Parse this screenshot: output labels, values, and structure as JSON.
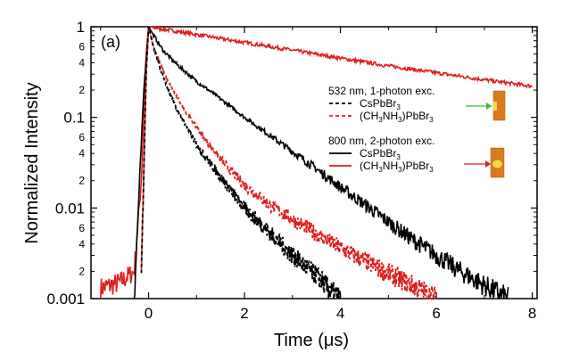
{
  "chart_data": {
    "type": "line",
    "panel_label": "(a)",
    "xlabel": "Time (μs)",
    "ylabel": "Normalized Intensity",
    "xlim": [
      -1.2,
      8.1
    ],
    "ylim": [
      0.001,
      1
    ],
    "yscale": "log",
    "grid": false,
    "x_ticks": [
      {
        "value": 0,
        "label": "0"
      },
      {
        "value": 2,
        "label": "2"
      },
      {
        "value": 4,
        "label": "4"
      },
      {
        "value": 6,
        "label": "6"
      },
      {
        "value": 8,
        "label": "8"
      }
    ],
    "y_major_ticks": [
      {
        "value": 1,
        "label": "1"
      },
      {
        "value": 0.1,
        "label": "0.1"
      },
      {
        "value": 0.01,
        "label": "0.01"
      },
      {
        "value": 0.001,
        "label": "0.001"
      }
    ],
    "y_minor_tick_labels": [
      "6",
      "4",
      "2",
      "6",
      "4",
      "2",
      "6",
      "4",
      "2"
    ],
    "legend": {
      "placement": "right",
      "groups": [
        {
          "title": "532 nm, 1-photon exc.",
          "entries": [
            {
              "base": "CsPbBr",
              "sub": "3",
              "tail": "",
              "style": "dashed",
              "color": "#000000"
            },
            {
              "base": "(CH",
              "sub": "3",
              "tail": "NH",
              "sub2": "3",
              "tail2": ")PbBr",
              "sub3": "3",
              "style": "dashed",
              "color": "#e01e1e"
            }
          ]
        },
        {
          "title": "800 nm, 2-photon exc.",
          "entries": [
            {
              "base": "CsPbBr",
              "sub": "3",
              "tail": "",
              "style": "solid",
              "color": "#000000"
            },
            {
              "base": "(CH",
              "sub": "3",
              "tail": "NH",
              "sub2": "3",
              "tail2": ")PbBr",
              "sub3": "3",
              "style": "solid",
              "color": "#e01e1e"
            }
          ]
        }
      ]
    },
    "series": [
      {
        "name": "CsPbBr3 (532 nm, 1-photon exc.)",
        "color": "#000000",
        "style": "dashed",
        "x": [
          -0.15,
          -0.05,
          0,
          0.1,
          0.3,
          0.6,
          1.0,
          1.5,
          2.0,
          2.5,
          3.0,
          3.3,
          3.6,
          3.8,
          4.0
        ],
        "y": [
          0.002,
          0.3,
          1,
          0.6,
          0.28,
          0.12,
          0.05,
          0.022,
          0.01,
          0.0055,
          0.003,
          0.0022,
          0.0016,
          0.0012,
          0.001
        ]
      },
      {
        "name": "(CH3NH3)PbBr3 (532 nm, 1-photon exc.)",
        "color": "#e01e1e",
        "style": "dashed",
        "x": [
          -0.15,
          -0.05,
          0,
          0.1,
          0.4,
          0.8,
          1.2,
          1.6,
          2.0,
          2.5,
          3.0,
          3.5,
          4.0,
          4.5,
          5.0,
          5.5,
          6.0
        ],
        "y": [
          0.002,
          0.3,
          1,
          0.6,
          0.25,
          0.11,
          0.055,
          0.03,
          0.018,
          0.011,
          0.0075,
          0.0052,
          0.0036,
          0.0026,
          0.0019,
          0.0014,
          0.001
        ]
      },
      {
        "name": "CsPbBr3 (800 nm, 2-photon exc.)",
        "color": "#000000",
        "style": "solid",
        "x": [
          -0.3,
          -0.1,
          0,
          0.05,
          0.3,
          0.6,
          1.0,
          1.5,
          2.0,
          2.5,
          3.0,
          3.5,
          4.0,
          4.5,
          5.0,
          5.5,
          6.0,
          6.5,
          7.0,
          7.5
        ],
        "y": [
          0.001,
          0.2,
          1,
          0.9,
          0.55,
          0.38,
          0.25,
          0.16,
          0.1,
          0.065,
          0.042,
          0.027,
          0.017,
          0.011,
          0.007,
          0.0045,
          0.003,
          0.002,
          0.0014,
          0.001
        ]
      },
      {
        "name": "(CH3NH3)PbBr3 (800 nm, 2-photon exc.)",
        "color": "#e01e1e",
        "style": "solid",
        "x": [
          -1.0,
          -0.6,
          -0.3,
          -0.15,
          -0.05,
          0,
          1,
          2,
          3,
          4,
          5,
          6,
          7,
          8
        ],
        "y": [
          0.0013,
          0.0015,
          0.002,
          0.02,
          0.5,
          1,
          0.82,
          0.67,
          0.55,
          0.45,
          0.37,
          0.31,
          0.26,
          0.22
        ]
      }
    ]
  }
}
